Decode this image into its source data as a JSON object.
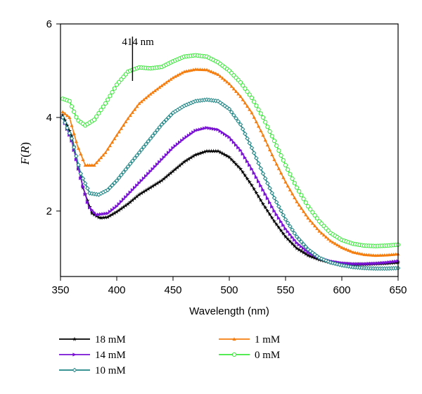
{
  "chart_data": {
    "type": "line",
    "xlabel": "Wavelength (nm)",
    "ylabel_parts": {
      "pre": "F",
      "paren_open": "(",
      "var": "R",
      "paren_close": ")"
    },
    "xlim": [
      350,
      650
    ],
    "ylim": [
      0.6,
      6
    ],
    "xticks": [
      "350",
      "400",
      "450",
      "500",
      "550",
      "600",
      "650"
    ],
    "yticks": [
      "2",
      "4",
      "6"
    ],
    "annotation": {
      "text": "414 nm",
      "x": 414
    },
    "legend_position": "bottom",
    "series": [
      {
        "name": "18 mM",
        "color": "#000000",
        "marker": "star",
        "points": [
          [
            352,
            4.05
          ],
          [
            360,
            3.6
          ],
          [
            370,
            2.5
          ],
          [
            378,
            1.95
          ],
          [
            385,
            1.85
          ],
          [
            392,
            1.87
          ],
          [
            400,
            1.98
          ],
          [
            410,
            2.15
          ],
          [
            420,
            2.35
          ],
          [
            430,
            2.5
          ],
          [
            440,
            2.65
          ],
          [
            450,
            2.85
          ],
          [
            460,
            3.05
          ],
          [
            470,
            3.2
          ],
          [
            480,
            3.28
          ],
          [
            490,
            3.28
          ],
          [
            500,
            3.15
          ],
          [
            510,
            2.9
          ],
          [
            520,
            2.55
          ],
          [
            530,
            2.15
          ],
          [
            540,
            1.78
          ],
          [
            550,
            1.45
          ],
          [
            560,
            1.2
          ],
          [
            570,
            1.05
          ],
          [
            580,
            0.96
          ],
          [
            590,
            0.9
          ],
          [
            600,
            0.87
          ],
          [
            610,
            0.86
          ],
          [
            620,
            0.86
          ],
          [
            630,
            0.87
          ],
          [
            640,
            0.88
          ],
          [
            650,
            0.9
          ]
        ]
      },
      {
        "name": "14 mM",
        "color": "#7a12d6",
        "marker": "triangle-right",
        "points": [
          [
            352,
            4.0
          ],
          [
            360,
            3.5
          ],
          [
            368,
            2.7
          ],
          [
            375,
            2.1
          ],
          [
            382,
            1.92
          ],
          [
            392,
            1.95
          ],
          [
            400,
            2.1
          ],
          [
            410,
            2.35
          ],
          [
            420,
            2.6
          ],
          [
            430,
            2.85
          ],
          [
            440,
            3.1
          ],
          [
            450,
            3.35
          ],
          [
            460,
            3.55
          ],
          [
            470,
            3.72
          ],
          [
            480,
            3.78
          ],
          [
            490,
            3.74
          ],
          [
            500,
            3.58
          ],
          [
            510,
            3.3
          ],
          [
            520,
            2.9
          ],
          [
            530,
            2.45
          ],
          [
            540,
            2.0
          ],
          [
            550,
            1.62
          ],
          [
            560,
            1.32
          ],
          [
            570,
            1.12
          ],
          [
            580,
            1.0
          ],
          [
            590,
            0.93
          ],
          [
            600,
            0.89
          ],
          [
            610,
            0.87
          ],
          [
            620,
            0.87
          ],
          [
            630,
            0.88
          ],
          [
            640,
            0.9
          ],
          [
            650,
            0.93
          ]
        ]
      },
      {
        "name": "10 mM",
        "color": "#1f8585",
        "marker": "diamond-open",
        "points": [
          [
            352,
            4.0
          ],
          [
            360,
            3.55
          ],
          [
            368,
            2.8
          ],
          [
            376,
            2.38
          ],
          [
            384,
            2.35
          ],
          [
            392,
            2.45
          ],
          [
            400,
            2.65
          ],
          [
            410,
            2.95
          ],
          [
            420,
            3.25
          ],
          [
            430,
            3.55
          ],
          [
            440,
            3.85
          ],
          [
            450,
            4.1
          ],
          [
            460,
            4.25
          ],
          [
            470,
            4.35
          ],
          [
            480,
            4.38
          ],
          [
            490,
            4.35
          ],
          [
            500,
            4.18
          ],
          [
            510,
            3.85
          ],
          [
            520,
            3.35
          ],
          [
            530,
            2.8
          ],
          [
            540,
            2.28
          ],
          [
            550,
            1.82
          ],
          [
            560,
            1.45
          ],
          [
            570,
            1.18
          ],
          [
            580,
            1.0
          ],
          [
            590,
            0.9
          ],
          [
            600,
            0.84
          ],
          [
            610,
            0.8
          ],
          [
            620,
            0.78
          ],
          [
            630,
            0.77
          ],
          [
            640,
            0.77
          ],
          [
            650,
            0.78
          ]
        ]
      },
      {
        "name": "1 mM",
        "color": "#f57e11",
        "marker": "triangle-up",
        "points": [
          [
            352,
            4.12
          ],
          [
            358,
            4.0
          ],
          [
            365,
            3.4
          ],
          [
            372,
            2.98
          ],
          [
            380,
            2.98
          ],
          [
            390,
            3.25
          ],
          [
            400,
            3.62
          ],
          [
            410,
            3.98
          ],
          [
            420,
            4.3
          ],
          [
            430,
            4.5
          ],
          [
            440,
            4.68
          ],
          [
            450,
            4.85
          ],
          [
            460,
            4.98
          ],
          [
            470,
            5.03
          ],
          [
            480,
            5.02
          ],
          [
            490,
            4.92
          ],
          [
            500,
            4.72
          ],
          [
            510,
            4.45
          ],
          [
            520,
            4.1
          ],
          [
            530,
            3.62
          ],
          [
            540,
            3.1
          ],
          [
            550,
            2.62
          ],
          [
            560,
            2.2
          ],
          [
            570,
            1.85
          ],
          [
            580,
            1.57
          ],
          [
            590,
            1.36
          ],
          [
            600,
            1.22
          ],
          [
            610,
            1.12
          ],
          [
            620,
            1.07
          ],
          [
            630,
            1.05
          ],
          [
            640,
            1.06
          ],
          [
            650,
            1.08
          ]
        ]
      },
      {
        "name": "0 mM",
        "color": "#3be83b",
        "marker": "circle-open",
        "points": [
          [
            352,
            4.4
          ],
          [
            358,
            4.35
          ],
          [
            365,
            3.95
          ],
          [
            372,
            3.83
          ],
          [
            380,
            3.95
          ],
          [
            390,
            4.3
          ],
          [
            400,
            4.7
          ],
          [
            410,
            4.98
          ],
          [
            420,
            5.07
          ],
          [
            430,
            5.05
          ],
          [
            440,
            5.08
          ],
          [
            450,
            5.2
          ],
          [
            460,
            5.3
          ],
          [
            470,
            5.33
          ],
          [
            480,
            5.3
          ],
          [
            490,
            5.18
          ],
          [
            500,
            5.0
          ],
          [
            510,
            4.75
          ],
          [
            520,
            4.42
          ],
          [
            530,
            4.0
          ],
          [
            540,
            3.5
          ],
          [
            550,
            2.98
          ],
          [
            560,
            2.5
          ],
          [
            570,
            2.1
          ],
          [
            580,
            1.78
          ],
          [
            590,
            1.53
          ],
          [
            600,
            1.38
          ],
          [
            610,
            1.3
          ],
          [
            620,
            1.26
          ],
          [
            630,
            1.25
          ],
          [
            640,
            1.26
          ],
          [
            650,
            1.28
          ]
        ]
      }
    ]
  }
}
